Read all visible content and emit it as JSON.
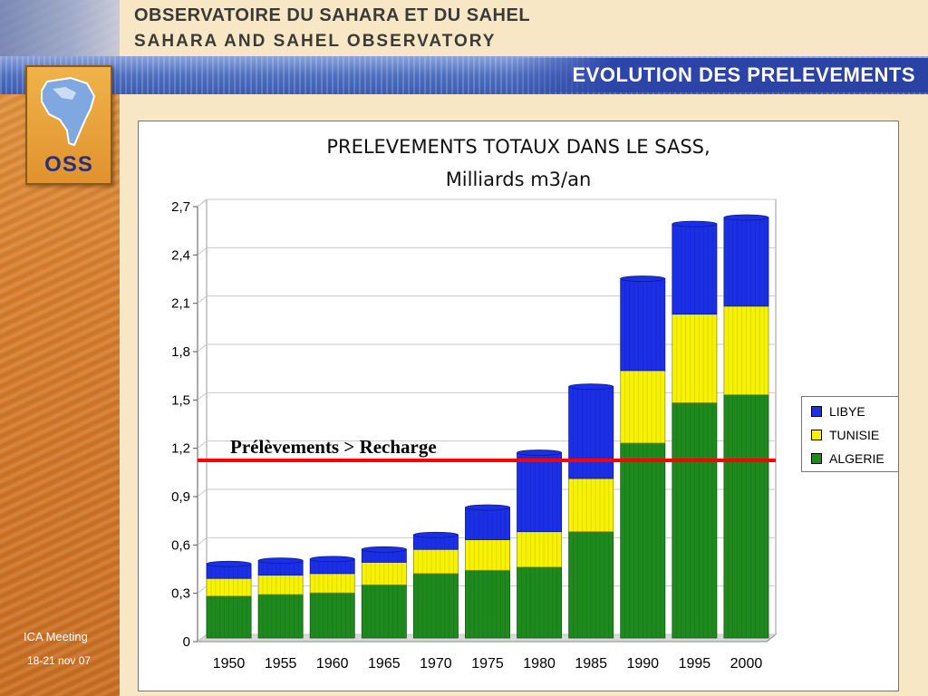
{
  "header": {
    "org_fr": "OBSERVATOIRE DU SAHARA ET DU SAHEL",
    "org_en": "SAHARA AND SAHEL OBSERVATORY",
    "slide_title": "EVOLUTION  DES  PRELEVEMENTS"
  },
  "logo": {
    "text": "OSS"
  },
  "footer": {
    "line1": "ICA Meeting",
    "line2": "18-21 nov 07"
  },
  "colors": {
    "libye": "#1a2fe6",
    "tunisie": "#f7f200",
    "algerie": "#1e8a1e",
    "threshold": "#ff0000"
  },
  "chart_data": {
    "type": "bar",
    "stacked": true,
    "title": "PRELEVEMENTS TOTAUX DANS LE SASS,",
    "subtitle": "Milliards m3/an",
    "categories": [
      "1950",
      "1955",
      "1960",
      "1965",
      "1970",
      "1975",
      "1980",
      "1985",
      "1990",
      "1995",
      "2000"
    ],
    "series": [
      {
        "name": "ALGERIE",
        "values": [
          0.26,
          0.27,
          0.28,
          0.33,
          0.4,
          0.42,
          0.44,
          0.66,
          1.21,
          1.46,
          1.51
        ]
      },
      {
        "name": "TUNISIE",
        "values": [
          0.11,
          0.12,
          0.12,
          0.14,
          0.15,
          0.19,
          0.22,
          0.33,
          0.45,
          0.55,
          0.55
        ]
      },
      {
        "name": "LIBYE",
        "values": [
          0.09,
          0.09,
          0.09,
          0.08,
          0.09,
          0.2,
          0.49,
          0.57,
          0.57,
          0.56,
          0.55
        ]
      }
    ],
    "ylim": [
      0,
      2.7
    ],
    "yticks": [
      "0",
      "0,3",
      "0,6",
      "0,9",
      "1,2",
      "1,5",
      "1,8",
      "2,1",
      "2,4",
      "2,7"
    ],
    "ytick_values": [
      0,
      0.3,
      0.6,
      0.9,
      1.2,
      1.5,
      1.8,
      2.1,
      2.4,
      2.7
    ],
    "grid": true,
    "legend_position": "right",
    "legend": [
      "LIBYE",
      "TUNISIE",
      "ALGERIE"
    ],
    "threshold": {
      "value": 1.08,
      "label": "Prélèvements > Recharge"
    }
  }
}
